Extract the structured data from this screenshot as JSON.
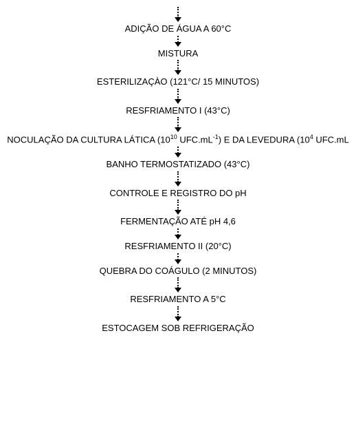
{
  "flowchart": {
    "type": "flowchart",
    "direction": "vertical",
    "background_color": "#ffffff",
    "text_color": "#000000",
    "arrow_color": "#000000",
    "arrow_style": "dotted",
    "font_family": "Arial",
    "font_size_pt": 10,
    "steps": [
      "ADIÇÃO DE ÁGUA A 60°C",
      "MISTURA",
      "ESTERILIZAÇÀO (121°C/ 15 MINUTOS)",
      "RESFRIAMENTO I (43°C)",
      "NOCULAÇÃO DA CULTURA LÁTICA (10¹⁰ UFC.mL⁻¹) E DA LEVEDURA (10⁴ UFC.mL",
      "BANHO TERMOSTATIZADO (43°C)",
      "CONTROLE E REGISTRO DO pH",
      "FERMENTAÇÃO ATÉ pH 4,6",
      "RESFRIAMENTO II (20°C)",
      "QUEBRA DO COÁGULO (2 MINUTOS)",
      "RESFRIAMENTO A 5°C",
      "ESTOCAGEM SOB REFRIGERAÇÃO"
    ],
    "step_html": {
      "4": "NOCULAÇÃO DA CULTURA LÁTICA (10<sup>10</sup>  UFC.mL<sup>-1</sup>) E DA LEVEDURA (10<sup>4</sup> UFC.mL"
    },
    "arrow_lengths": [
      "long",
      "short",
      "long",
      "long",
      "long",
      "short",
      "long",
      "long",
      "short",
      "short",
      "long",
      "long",
      "short"
    ]
  }
}
